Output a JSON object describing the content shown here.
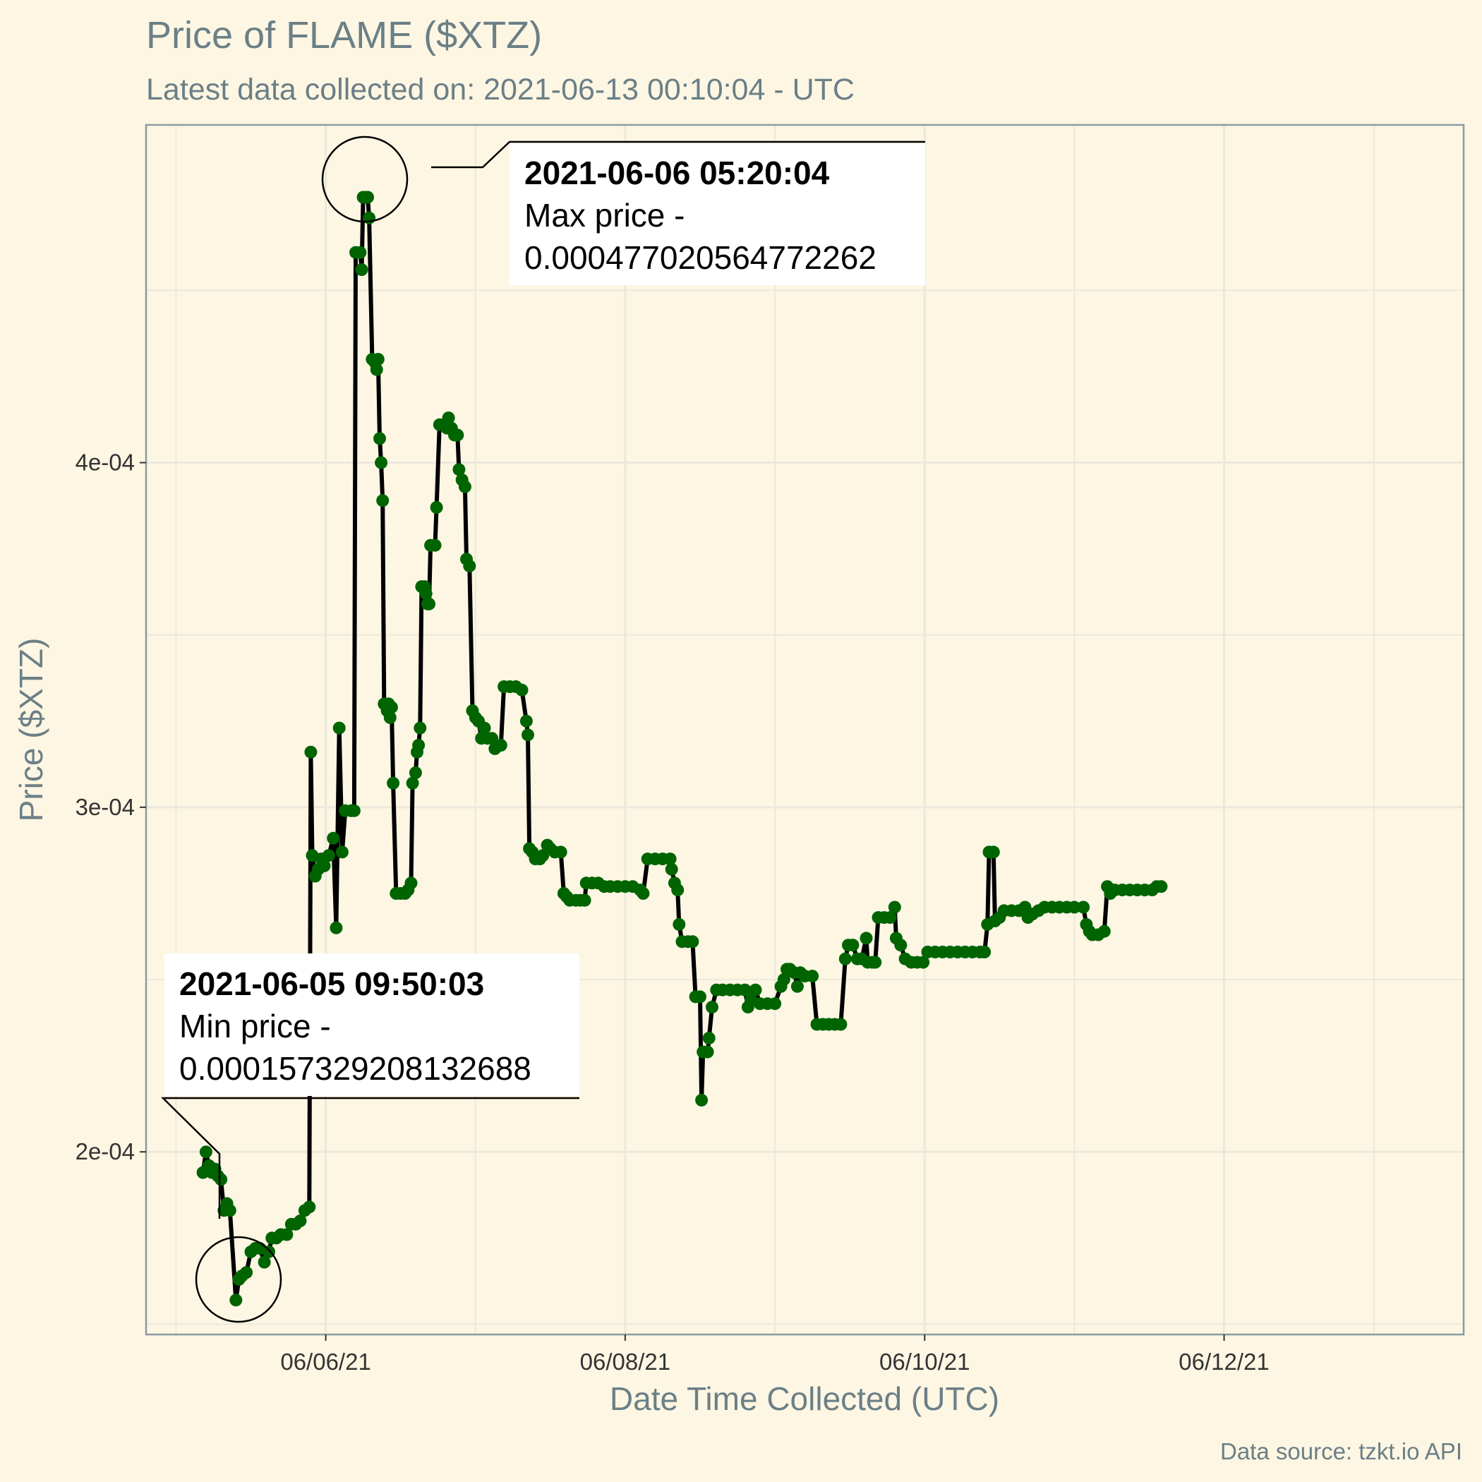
{
  "title": "Price of FLAME ($XTZ)",
  "subtitle": "Latest data collected on: 2021-06-13 00:10:04  - UTC",
  "caption": "Data source: tzkt.io API",
  "colors": {
    "background": "#fdf6e3",
    "points": "#006400",
    "line": "#000000",
    "grid": "#ebe8dc",
    "text": "#6b7f86"
  },
  "annotations": {
    "max": {
      "time": "2021-06-06 05:20:04",
      "label": "Max price -",
      "value": "0.000477020564772262"
    },
    "min": {
      "time": "2021-06-05 09:50:03",
      "label": "Min price -",
      "value": "0.000157329208132688"
    }
  },
  "chart_data": {
    "type": "line",
    "title": "Price of FLAME ($XTZ)",
    "xlabel": "Date Time Collected (UTC)",
    "ylabel": "Price ($XTZ)",
    "x_unit": "days since 2021-06-06 00:00 UTC",
    "xlim": [
      -1.2,
      7.6
    ],
    "ylim": [
      0.000147,
      0.000498
    ],
    "x_ticks": [
      {
        "v": 0,
        "label": "06/06/21"
      },
      {
        "v": 2,
        "label": "06/08/21"
      },
      {
        "v": 4,
        "label": "06/10/21"
      },
      {
        "v": 6,
        "label": "06/12/21"
      }
    ],
    "y_ticks": [
      {
        "v": 0.0002,
        "label": "2e-04"
      },
      {
        "v": 0.0003,
        "label": "3e-04"
      },
      {
        "v": 0.0004,
        "label": "4e-04"
      }
    ],
    "grid": true,
    "legend": "none",
    "series": [
      {
        "name": "price",
        "points": [
          [
            -0.82,
            0.000194
          ],
          [
            -0.8,
            0.0002
          ],
          [
            -0.78,
            0.000196
          ],
          [
            -0.76,
            0.000194
          ],
          [
            -0.74,
            0.000195
          ],
          [
            -0.72,
            0.000193
          ],
          [
            -0.7,
            0.000192
          ],
          [
            -0.68,
            0.000183
          ],
          [
            -0.66,
            0.000185
          ],
          [
            -0.64,
            0.000183
          ],
          [
            -0.6,
            0.000157
          ],
          [
            -0.58,
            0.000163
          ],
          [
            -0.56,
            0.000164
          ],
          [
            -0.53,
            0.000165
          ],
          [
            -0.5,
            0.000171
          ],
          [
            -0.47,
            0.000172
          ],
          [
            -0.44,
            0.000172
          ],
          [
            -0.41,
            0.000168
          ],
          [
            -0.38,
            0.000171
          ],
          [
            -0.36,
            0.000175
          ],
          [
            -0.33,
            0.000175
          ],
          [
            -0.3,
            0.000176
          ],
          [
            -0.26,
            0.000176
          ],
          [
            -0.23,
            0.000179
          ],
          [
            -0.2,
            0.000179
          ],
          [
            -0.17,
            0.00018
          ],
          [
            -0.14,
            0.000183
          ],
          [
            -0.11,
            0.000184
          ],
          [
            -0.1,
            0.000316
          ],
          [
            -0.09,
            0.000286
          ],
          [
            -0.07,
            0.00028
          ],
          [
            -0.05,
            0.000282
          ],
          [
            -0.03,
            0.000285
          ],
          [
            -0.01,
            0.000283
          ],
          [
            0.02,
            0.000286
          ],
          [
            0.05,
            0.000291
          ],
          [
            0.07,
            0.000265
          ],
          [
            0.09,
            0.000323
          ],
          [
            0.11,
            0.000287
          ],
          [
            0.13,
            0.000299
          ],
          [
            0.17,
            0.000299
          ],
          [
            0.19,
            0.000299
          ],
          [
            0.2,
            0.000461
          ],
          [
            0.23,
            0.000461
          ],
          [
            0.24,
            0.000456
          ],
          [
            0.25,
            0.000477
          ],
          [
            0.27,
            0.000477
          ],
          [
            0.28,
            0.000477
          ],
          [
            0.29,
            0.000471
          ],
          [
            0.31,
            0.00043
          ],
          [
            0.33,
            0.000429
          ],
          [
            0.34,
            0.000427
          ],
          [
            0.35,
            0.00043
          ],
          [
            0.36,
            0.000407
          ],
          [
            0.37,
            0.0004
          ],
          [
            0.38,
            0.000389
          ],
          [
            0.39,
            0.00033
          ],
          [
            0.41,
            0.000328
          ],
          [
            0.42,
            0.00033
          ],
          [
            0.43,
            0.000326
          ],
          [
            0.44,
            0.000329
          ],
          [
            0.45,
            0.000307
          ],
          [
            0.47,
            0.000275
          ],
          [
            0.5,
            0.000275
          ],
          [
            0.53,
            0.000275
          ],
          [
            0.55,
            0.000276
          ],
          [
            0.57,
            0.000278
          ],
          [
            0.58,
            0.000307
          ],
          [
            0.6,
            0.00031
          ],
          [
            0.61,
            0.000316
          ],
          [
            0.62,
            0.000318
          ],
          [
            0.63,
            0.000323
          ],
          [
            0.64,
            0.000364
          ],
          [
            0.66,
            0.000364
          ],
          [
            0.67,
            0.000362
          ],
          [
            0.68,
            0.000359
          ],
          [
            0.69,
            0.000359
          ],
          [
            0.7,
            0.000376
          ],
          [
            0.73,
            0.000376
          ],
          [
            0.74,
            0.000387
          ],
          [
            0.76,
            0.000411
          ],
          [
            0.79,
            0.000411
          ],
          [
            0.81,
            0.00041
          ],
          [
            0.82,
            0.000413
          ],
          [
            0.84,
            0.00041
          ],
          [
            0.86,
            0.000408
          ],
          [
            0.88,
            0.000408
          ],
          [
            0.89,
            0.000398
          ],
          [
            0.91,
            0.000395
          ],
          [
            0.93,
            0.000393
          ],
          [
            0.94,
            0.000372
          ],
          [
            0.96,
            0.00037
          ],
          [
            0.98,
            0.000328
          ],
          [
            1.0,
            0.000326
          ],
          [
            1.02,
            0.000325
          ],
          [
            1.04,
            0.00032
          ],
          [
            1.06,
            0.000323
          ],
          [
            1.08,
            0.00032
          ],
          [
            1.11,
            0.00032
          ],
          [
            1.13,
            0.000317
          ],
          [
            1.17,
            0.000318
          ],
          [
            1.19,
            0.000335
          ],
          [
            1.23,
            0.000335
          ],
          [
            1.27,
            0.000335
          ],
          [
            1.31,
            0.000334
          ],
          [
            1.34,
            0.000325
          ],
          [
            1.35,
            0.000321
          ],
          [
            1.36,
            0.000288
          ],
          [
            1.38,
            0.000287
          ],
          [
            1.4,
            0.000285
          ],
          [
            1.43,
            0.000285
          ],
          [
            1.45,
            0.000286
          ],
          [
            1.48,
            0.000289
          ],
          [
            1.5,
            0.000288
          ],
          [
            1.53,
            0.000287
          ],
          [
            1.57,
            0.000287
          ],
          [
            1.59,
            0.000275
          ],
          [
            1.61,
            0.000274
          ],
          [
            1.63,
            0.000273
          ],
          [
            1.67,
            0.000273
          ],
          [
            1.7,
            0.000273
          ],
          [
            1.73,
            0.000273
          ],
          [
            1.74,
            0.000278
          ],
          [
            1.78,
            0.000278
          ],
          [
            1.82,
            0.000278
          ],
          [
            1.86,
            0.000277
          ],
          [
            1.9,
            0.000277
          ],
          [
            1.95,
            0.000277
          ],
          [
            2.0,
            0.000277
          ],
          [
            2.05,
            0.000277
          ],
          [
            2.1,
            0.000276
          ],
          [
            2.12,
            0.000275
          ],
          [
            2.15,
            0.000285
          ],
          [
            2.2,
            0.000285
          ],
          [
            2.25,
            0.000285
          ],
          [
            2.3,
            0.000285
          ],
          [
            2.31,
            0.000282
          ],
          [
            2.33,
            0.000278
          ],
          [
            2.35,
            0.000276
          ],
          [
            2.36,
            0.000266
          ],
          [
            2.38,
            0.000261
          ],
          [
            2.42,
            0.000261
          ],
          [
            2.45,
            0.000261
          ],
          [
            2.47,
            0.000245
          ],
          [
            2.5,
            0.000245
          ],
          [
            2.51,
            0.000215
          ],
          [
            2.52,
            0.000229
          ],
          [
            2.55,
            0.000229
          ],
          [
            2.56,
            0.000233
          ],
          [
            2.58,
            0.000242
          ],
          [
            2.61,
            0.000247
          ],
          [
            2.65,
            0.000247
          ],
          [
            2.7,
            0.000247
          ],
          [
            2.75,
            0.000247
          ],
          [
            2.8,
            0.000247
          ],
          [
            2.82,
            0.000242
          ],
          [
            2.84,
            0.000244
          ],
          [
            2.87,
            0.000247
          ],
          [
            2.9,
            0.000243
          ],
          [
            2.95,
            0.000243
          ],
          [
            3.0,
            0.000243
          ],
          [
            3.04,
            0.000248
          ],
          [
            3.06,
            0.00025
          ],
          [
            3.08,
            0.000253
          ],
          [
            3.1,
            0.000253
          ],
          [
            3.13,
            0.000252
          ],
          [
            3.15,
            0.000248
          ],
          [
            3.17,
            0.000252
          ],
          [
            3.2,
            0.000251
          ],
          [
            3.25,
            0.000251
          ],
          [
            3.28,
            0.000237
          ],
          [
            3.32,
            0.000237
          ],
          [
            3.36,
            0.000237
          ],
          [
            3.4,
            0.000237
          ],
          [
            3.44,
            0.000237
          ],
          [
            3.47,
            0.000256
          ],
          [
            3.49,
            0.00026
          ],
          [
            3.52,
            0.00026
          ],
          [
            3.55,
            0.000256
          ],
          [
            3.58,
            0.000256
          ],
          [
            3.61,
            0.000262
          ],
          [
            3.62,
            0.000255
          ],
          [
            3.65,
            0.000255
          ],
          [
            3.67,
            0.000255
          ],
          [
            3.69,
            0.000268
          ],
          [
            3.73,
            0.000268
          ],
          [
            3.77,
            0.000268
          ],
          [
            3.8,
            0.000271
          ],
          [
            3.81,
            0.000262
          ],
          [
            3.84,
            0.00026
          ],
          [
            3.87,
            0.000256
          ],
          [
            3.91,
            0.000255
          ],
          [
            3.95,
            0.000255
          ],
          [
            3.99,
            0.000255
          ],
          [
            4.02,
            0.000258
          ],
          [
            4.07,
            0.000258
          ],
          [
            4.12,
            0.000258
          ],
          [
            4.17,
            0.000258
          ],
          [
            4.22,
            0.000258
          ],
          [
            4.27,
            0.000258
          ],
          [
            4.32,
            0.000258
          ],
          [
            4.37,
            0.000258
          ],
          [
            4.4,
            0.000258
          ],
          [
            4.42,
            0.000266
          ],
          [
            4.43,
            0.000287
          ],
          [
            4.46,
            0.000287
          ],
          [
            4.47,
            0.000267
          ],
          [
            4.5,
            0.000268
          ],
          [
            4.53,
            0.00027
          ],
          [
            4.58,
            0.00027
          ],
          [
            4.63,
            0.00027
          ],
          [
            4.67,
            0.000271
          ],
          [
            4.69,
            0.000268
          ],
          [
            4.72,
            0.000269
          ],
          [
            4.76,
            0.00027
          ],
          [
            4.8,
            0.000271
          ],
          [
            4.85,
            0.000271
          ],
          [
            4.9,
            0.000271
          ],
          [
            4.95,
            0.000271
          ],
          [
            5.0,
            0.000271
          ],
          [
            5.06,
            0.000271
          ],
          [
            5.08,
            0.000266
          ],
          [
            5.1,
            0.000264
          ],
          [
            5.12,
            0.000263
          ],
          [
            5.16,
            0.000263
          ],
          [
            5.2,
            0.000264
          ],
          [
            5.22,
            0.000277
          ],
          [
            5.24,
            0.000275
          ],
          [
            5.27,
            0.000276
          ],
          [
            5.32,
            0.000276
          ],
          [
            5.37,
            0.000276
          ],
          [
            5.42,
            0.000276
          ],
          [
            5.47,
            0.000276
          ],
          [
            5.52,
            0.000276
          ],
          [
            5.55,
            0.000277
          ],
          [
            5.58,
            0.000277
          ]
        ]
      }
    ]
  }
}
